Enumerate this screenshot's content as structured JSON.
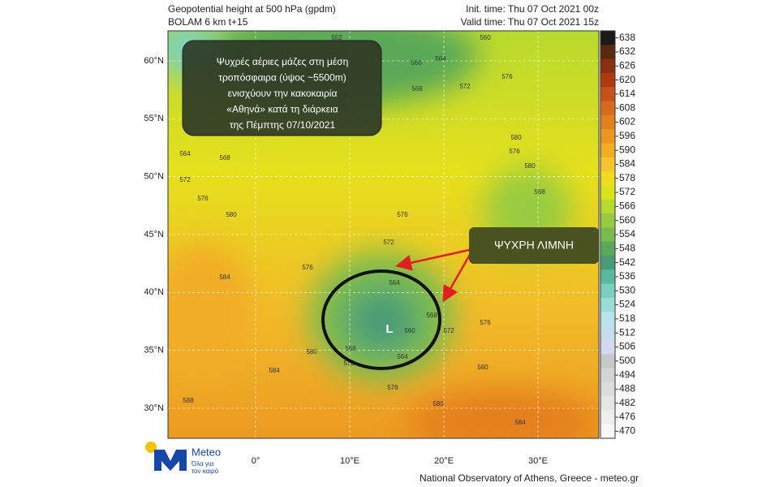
{
  "header": {
    "title": "Geopotential height at 500 hPa (gpdm)",
    "model": "BOLAM 6 km t+15",
    "init_time": "Init. time: Thu 07 Oct 2021 00z",
    "valid_time": "Valid time: Thu 07 Oct 2021 15z"
  },
  "map": {
    "lat_ticks": [
      {
        "value": 60,
        "label": "60°N"
      },
      {
        "value": 55,
        "label": "55°N"
      },
      {
        "value": 50,
        "label": "50°N"
      },
      {
        "value": 45,
        "label": "45°N"
      },
      {
        "value": 40,
        "label": "40°N"
      },
      {
        "value": 35,
        "label": "35°N"
      },
      {
        "value": 30,
        "label": "30°N"
      }
    ],
    "lon_ticks": [
      {
        "value": 0,
        "label": "0°"
      },
      {
        "value": 10,
        "label": "10°E"
      },
      {
        "value": 20,
        "label": "20°E"
      },
      {
        "value": 30,
        "label": "30°E"
      }
    ],
    "contour_labels": [
      552,
      560,
      560,
      564,
      572,
      576,
      568,
      580,
      576,
      580,
      564,
      568,
      572,
      576,
      580,
      568,
      576,
      572,
      572,
      568,
      576,
      564,
      584,
      568,
      560,
      572,
      576,
      568,
      580,
      564,
      572,
      584,
      576,
      580,
      588,
      584,
      580
    ],
    "low_label": "L"
  },
  "colorbar": {
    "ticks": [
      638,
      632,
      626,
      620,
      614,
      608,
      602,
      596,
      590,
      584,
      578,
      572,
      566,
      560,
      554,
      548,
      542,
      536,
      530,
      524,
      518,
      512,
      506,
      500,
      494,
      488,
      482,
      476,
      470
    ],
    "colors": [
      "#1a1a1a",
      "#5a2a10",
      "#8a3012",
      "#b03a10",
      "#c8501a",
      "#d86a1c",
      "#e4801e",
      "#ec9622",
      "#f2ac26",
      "#f6c42c",
      "#f0dc1e",
      "#d8e418",
      "#b8da2e",
      "#98cc40",
      "#78bc50",
      "#5aa858",
      "#4a9c78",
      "#58b8a0",
      "#7ad0c0",
      "#9adcd8",
      "#b8e4ec",
      "#c8dcf0",
      "#d4d8f0",
      "#c8c8c8",
      "#d4d4d4",
      "#dcdcdc",
      "#e6e6e6",
      "#eeeeee",
      "#f8f8f8"
    ]
  },
  "annotation": {
    "lines": [
      "Ψυχρές αέριες μάζες στη μέση",
      "τροπόσφαιρα  (ύψος ~5500m)",
      "ενισχύουν την κακοκαιρία",
      "«Αθηνά» κατά τη διάρκεια",
      "της Πέμπτης 07/10/2021"
    ],
    "callout": "ΨΥΧΡΗ ΛΙΜΝΗ"
  },
  "logo": {
    "name": "Meteo",
    "tagline_1": "Όλα για",
    "tagline_2": "τον καιρό"
  },
  "footer": {
    "credit": "National Observatory of Athens, Greece - meteo.gr"
  }
}
